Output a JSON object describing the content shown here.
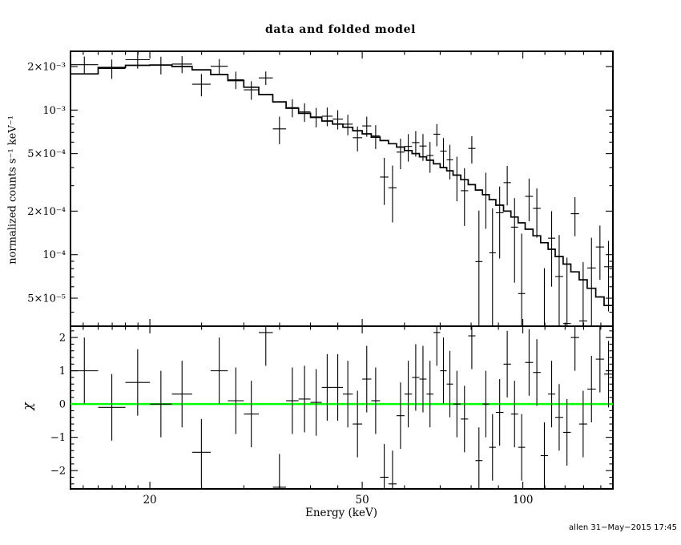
{
  "footer": {
    "signature": "allen 31−May−2015 17:45"
  },
  "chart_data": {
    "type": "spectrum_with_residuals",
    "title": "data and folded model",
    "x_axis": {
      "label": "Energy (keV)",
      "scale": "log",
      "range": [
        14.2,
        147.5
      ],
      "major_ticks": [
        {
          "value": 20,
          "label": "20"
        },
        {
          "value": 50,
          "label": "50"
        },
        {
          "value": 100,
          "label": "100"
        }
      ],
      "minor_ticks": [
        15,
        16,
        17,
        18,
        19,
        25,
        30,
        35,
        40,
        45,
        60,
        70,
        80,
        90,
        110,
        120,
        130,
        140
      ]
    },
    "y_axis_top": {
      "label": "normalized counts s⁻¹ keV⁻¹",
      "scale": "log",
      "range": [
        3.2e-05,
        0.00255
      ],
      "major_ticks": [
        {
          "value": 0.002,
          "label": "2×10⁻³"
        },
        {
          "value": 0.001,
          "label": "10⁻³"
        },
        {
          "value": 0.0005,
          "label": "5×10⁻⁴"
        },
        {
          "value": 0.0002,
          "label": "2×10⁻⁴"
        },
        {
          "value": 0.0001,
          "label": "10⁻⁴"
        },
        {
          "value": 5e-05,
          "label": "5×10⁻⁵"
        }
      ],
      "minor_ticks": [
        4e-05,
        6e-05,
        7e-05,
        8e-05,
        9e-05,
        0.0003,
        0.0004,
        0.0006,
        0.0007,
        0.0008,
        0.0009
      ]
    },
    "y_axis_bottom": {
      "label": "χ",
      "scale": "linear",
      "range": [
        -2.55,
        2.34
      ],
      "major_ticks": [
        {
          "value": 2,
          "label": "2"
        },
        {
          "value": 1,
          "label": "1"
        },
        {
          "value": 0,
          "label": "0"
        },
        {
          "value": -1,
          "label": "−1"
        },
        {
          "value": -2,
          "label": "−2"
        }
      ],
      "minor_step": 0.2
    },
    "zero_line_color": "#00ff00",
    "data_color": "#000000",
    "model_color": "#000000",
    "bins": {
      "edges_kev": [
        14.2,
        16,
        18,
        20,
        22,
        24,
        26,
        28,
        30,
        32,
        34,
        36,
        38,
        40,
        42,
        44,
        46,
        48,
        50,
        52,
        54,
        56,
        58,
        60,
        62,
        64,
        66,
        68,
        70,
        72,
        74,
        76.5,
        79,
        81.5,
        84,
        86.5,
        89,
        92,
        95,
        98,
        101,
        104.5,
        108,
        111.5,
        115,
        119,
        123,
        127.5,
        132,
        137,
        142,
        147.5
      ],
      "model": [
        0.00178,
        0.00197,
        0.00204,
        0.00205,
        0.002,
        0.0019,
        0.00176,
        0.0016,
        0.00144,
        0.00128,
        0.00114,
        0.00103,
        0.00095,
        0.00089,
        0.00084,
        0.0008,
        0.00076,
        0.00072,
        0.000685,
        0.00065,
        0.000615,
        0.000585,
        0.000555,
        0.000525,
        0.0005,
        0.000475,
        0.00045,
        0.000425,
        0.0004,
        0.00038,
        0.000355,
        0.00033,
        0.000305,
        0.00028,
        0.00026,
        0.00024,
        0.00022,
        0.0002,
        0.000182,
        0.000166,
        0.00015,
        0.000135,
        0.000121,
        0.000109,
        9.7e-05,
        8.6e-05,
        7.6e-05,
        6.7e-05,
        5.85e-05,
        5.1e-05,
        4.45e-05
      ],
      "rate": [
        0.00206,
        0.00194,
        0.00223,
        0.00205,
        0.00208,
        0.00151,
        0.00201,
        0.00162,
        0.00138,
        0.00167,
        0.000741,
        0.00104,
        0.000971,
        0.000897,
        0.000907,
        0.000866,
        0.000799,
        0.000644,
        0.000777,
        0.000662,
        0.000344,
        0.00029,
        0.000512,
        0.000561,
        0.000596,
        0.000564,
        0.000485,
        0.000681,
        0.00052,
        0.000453,
        0.000355,
        0.000277,
        0.000543,
        8.96e-05,
        0.00026,
        0.000103,
        0.000195,
        0.000315,
        0.000155,
        5.38e-05,
        0.000253,
        0.000209,
        6.6e-06,
        0.00013,
        7.06e-05,
        3.34e-05,
        0.000192,
        3.48e-05,
        8.09e-05,
        0.000113,
        8.25e-05
      ],
      "rate_err": [
        0.000285,
        0.000296,
        0.000296,
        0.000287,
        0.00028,
        0.000266,
        0.000246,
        0.000224,
        0.000202,
        0.000179,
        0.00016,
        0.000149,
        0.000143,
        0.000138,
        0.000134,
        0.000132,
        0.000129,
        0.000126,
        0.000123,
        0.000124,
        0.000123,
        0.000123,
        0.000122,
        0.000121,
        0.00012,
        0.000119,
        0.000117,
        0.000119,
        0.00012,
        0.000122,
        0.000121,
        0.000119,
        0.000116,
        0.000112,
        0.000109,
        0.000106,
        0.000101,
        9.6e-05,
        9.1e-05,
        8.6e-05,
        8.3e-05,
        7.8e-05,
        7.4e-05,
        7e-05,
        6.6e-05,
        6.2e-05,
        5.8e-05,
        5.4e-05,
        5e-05,
        4.6e-05,
        4.2e-05
      ],
      "chi": [
        1.0,
        -0.1,
        0.65,
        0.0,
        0.3,
        -1.45,
        1.0,
        0.1,
        -0.3,
        2.15,
        -2.5,
        0.1,
        0.15,
        0.05,
        0.5,
        0.5,
        0.3,
        -0.6,
        0.75,
        0.1,
        -2.2,
        -2.4,
        -0.35,
        0.3,
        0.8,
        0.75,
        0.3,
        2.15,
        1.0,
        0.6,
        0.0,
        -0.45,
        2.05,
        -1.7,
        0.0,
        -1.3,
        -0.25,
        1.2,
        -0.3,
        -1.3,
        1.25,
        0.95,
        -1.55,
        0.3,
        -0.4,
        -0.85,
        2.0,
        -0.6,
        0.45,
        1.35,
        0.9
      ],
      "chi_err": 1
    }
  }
}
